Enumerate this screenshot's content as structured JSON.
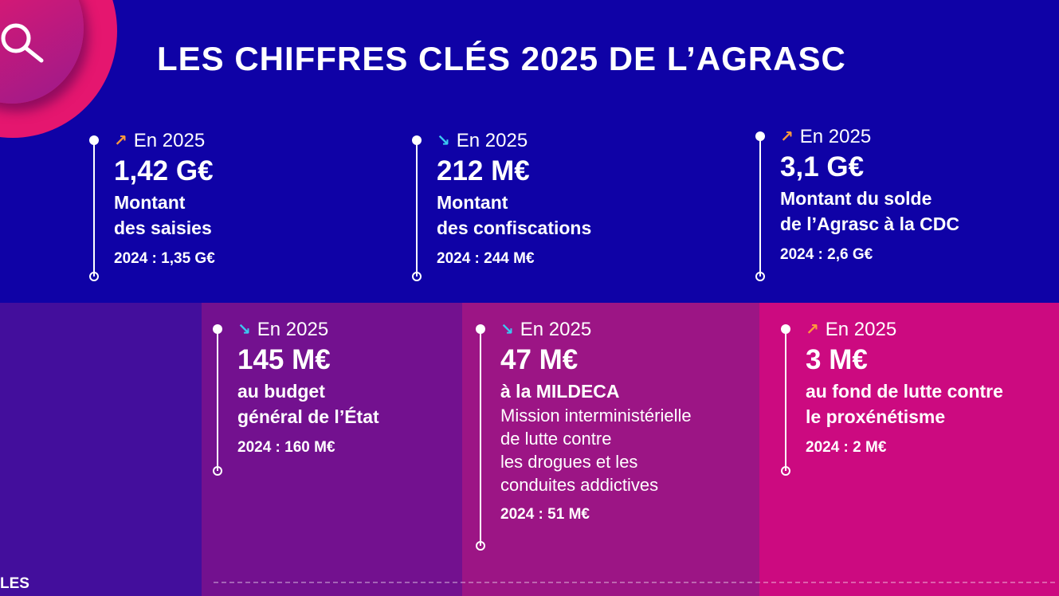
{
  "title": "LES CHIFFRES CLÉS 2025 DE L’AGRASC",
  "colors": {
    "top_bg": "#0f02a6",
    "panel1": "#430e9c",
    "panel2": "#73118f",
    "panel3": "#9c1585",
    "panel4": "#cc0a80",
    "up_arrow": "#ff9a3c",
    "down_arrow": "#3cc8f0"
  },
  "icons": {
    "header": "search-icon"
  },
  "top_cards": [
    {
      "trend": "up",
      "arrow": "↗",
      "year": "En 2025",
      "value": "1,42 G€",
      "label1": "Montant",
      "label2": "des saisies",
      "prev": "2024 : 1,35 G€"
    },
    {
      "trend": "down",
      "arrow": "↘",
      "year": "En 2025",
      "value": "212 M€",
      "label1": "Montant",
      "label2": "des confiscations",
      "prev": "2024 : 244 M€"
    },
    {
      "trend": "up",
      "arrow": "↗",
      "year": "En 2025",
      "value": "3,1 G€",
      "label1": "Montant du solde",
      "label2": "de l’Agrasc à la CDC",
      "prev": "2024 : 2,6 G€"
    }
  ],
  "bottom_cards": [
    {
      "trend": "down",
      "arrow": "↘",
      "year": "En 2025",
      "value": "145 M€",
      "label1": "au budget",
      "label2": "général de l’État",
      "prev": "2024 : 160 M€"
    },
    {
      "trend": "down",
      "arrow": "↘",
      "year": "En 2025",
      "value": "47 M€",
      "label1": "à la MILDECA",
      "desc": [
        "Mission interministérielle",
        "de lutte contre",
        "les drogues et les",
        "conduites addictives"
      ],
      "prev": "2024 : 51 M€"
    },
    {
      "trend": "up",
      "arrow": "↗",
      "year": "En 2025",
      "value": "3 M€",
      "label1": "au fond de lutte contre",
      "label2": "le proxénétisme",
      "prev": "2024 : 2 M€"
    }
  ],
  "footer_partial": "LES"
}
